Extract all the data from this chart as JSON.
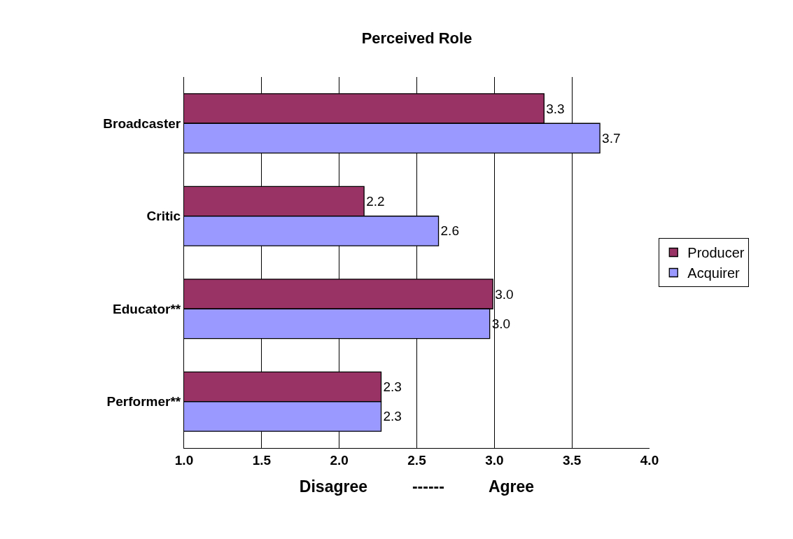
{
  "chart_data": {
    "type": "bar",
    "orientation": "horizontal",
    "title": "Perceived Role",
    "xlabel": "Disagree          ------          Agree",
    "categories": [
      "Broadcaster",
      "Critic",
      "Educator**",
      "Performer**"
    ],
    "series": [
      {
        "name": "Producer",
        "color": "#993366",
        "values": [
          3.32,
          2.16,
          2.99,
          2.27
        ],
        "value_labels": [
          "3.3",
          "2.2",
          "3.0",
          "2.3"
        ]
      },
      {
        "name": "Acquirer",
        "color": "#9999ff",
        "values": [
          3.68,
          2.64,
          2.97,
          2.27
        ],
        "value_labels": [
          "3.7",
          "2.6",
          "3.0",
          "2.3"
        ]
      }
    ],
    "xlim": [
      1.0,
      4.0
    ],
    "xticks": [
      {
        "value": 1.0,
        "label": "1.0"
      },
      {
        "value": 1.5,
        "label": "1.5"
      },
      {
        "value": 2.0,
        "label": "2.0"
      },
      {
        "value": 2.5,
        "label": "2.5"
      },
      {
        "value": 3.0,
        "label": "3.0"
      },
      {
        "value": 3.5,
        "label": "3.5"
      },
      {
        "value": 4.0,
        "label": "4.0"
      }
    ],
    "grid": "x",
    "legend": "right"
  }
}
